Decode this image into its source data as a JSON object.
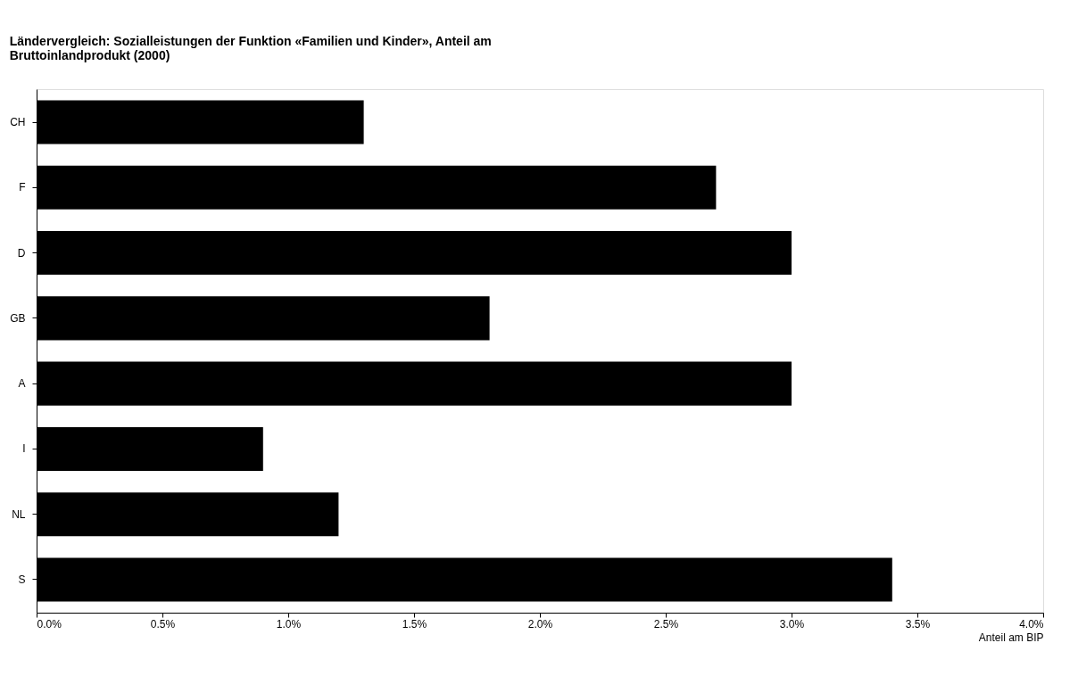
{
  "chart_data": {
    "type": "bar",
    "orientation": "horizontal",
    "title": "Ländervergleich: Sozialleistungen der Funktion «Familien und Kinder», Anteil am Bruttoinlandprodukt (2000)",
    "xlabel": "Anteil am BIP",
    "categories": [
      "CH",
      "F",
      "D",
      "GB",
      "A",
      "I",
      "NL",
      "S"
    ],
    "values": [
      1.3,
      2.7,
      3.0,
      1.8,
      3.0,
      0.9,
      1.2,
      3.4
    ],
    "color": "#000000",
    "xlim": [
      0,
      4
    ],
    "xticks": [
      {
        "value": 0,
        "label": "0.0%"
      },
      {
        "value": 0.5,
        "label": "0.5%"
      },
      {
        "value": 1,
        "label": "1.0%"
      },
      {
        "value": 1.5,
        "label": "1.5%"
      },
      {
        "value": 2,
        "label": "2.0%"
      },
      {
        "value": 2.5,
        "label": "2.5%"
      },
      {
        "value": 3,
        "label": "3.0%"
      },
      {
        "value": 3.5,
        "label": "3.5%"
      },
      {
        "value": 4,
        "label": "4.0%"
      }
    ],
    "grid": false
  }
}
